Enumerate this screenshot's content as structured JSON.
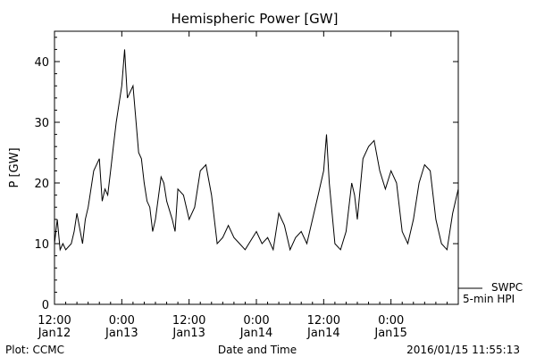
{
  "chart_data": {
    "type": "line",
    "title": "Hemispheric Power [GW]",
    "xlabel": "Date and Time",
    "ylabel": "P [GW]",
    "ylim": [
      0,
      45
    ],
    "yticks": [
      0,
      10,
      20,
      30,
      40
    ],
    "xlim": [
      "2016-01-12 12:00",
      "2016-01-15 12:00"
    ],
    "xticks": [
      {
        "time": "2016-01-12 12:00",
        "line1": "12:00",
        "line2": "Jan12"
      },
      {
        "time": "2016-01-13 00:00",
        "line1": "0:00",
        "line2": "Jan13"
      },
      {
        "time": "2016-01-13 12:00",
        "line1": "12:00",
        "line2": "Jan13"
      },
      {
        "time": "2016-01-14 00:00",
        "line1": "0:00",
        "line2": "Jan14"
      },
      {
        "time": "2016-01-14 12:00",
        "line1": "12:00",
        "line2": "Jan14"
      },
      {
        "time": "2016-01-15 00:00",
        "line1": "0:00",
        "line2": "Jan15"
      }
    ],
    "grid": false,
    "legend": {
      "position": "right-bottom",
      "entries": [
        "SWPC",
        "5-min HPI"
      ]
    },
    "series": [
      {
        "name": "SWPC 5-min HPI",
        "color": "#000000",
        "x": [
          "2016-01-12 12:00",
          "2016-01-12 12:30",
          "2016-01-12 13:00",
          "2016-01-12 13:30",
          "2016-01-12 14:00",
          "2016-01-12 15:00",
          "2016-01-12 15:30",
          "2016-01-12 16:00",
          "2016-01-12 17:00",
          "2016-01-12 17:30",
          "2016-01-12 18:00",
          "2016-01-12 19:00",
          "2016-01-12 20:00",
          "2016-01-12 20:30",
          "2016-01-12 21:00",
          "2016-01-12 21:30",
          "2016-01-12 22:00",
          "2016-01-12 22:30",
          "2016-01-12 23:00",
          "2016-01-13 00:00",
          "2016-01-13 00:30",
          "2016-01-13 01:00",
          "2016-01-13 02:00",
          "2016-01-13 03:00",
          "2016-01-13 03:30",
          "2016-01-13 04:00",
          "2016-01-13 04:30",
          "2016-01-13 05:00",
          "2016-01-13 05:30",
          "2016-01-13 06:00",
          "2016-01-13 07:00",
          "2016-01-13 07:30",
          "2016-01-13 08:00",
          "2016-01-13 09:00",
          "2016-01-13 09:30",
          "2016-01-13 10:00",
          "2016-01-13 11:00",
          "2016-01-13 12:00",
          "2016-01-13 13:00",
          "2016-01-13 14:00",
          "2016-01-13 15:00",
          "2016-01-13 16:00",
          "2016-01-13 17:00",
          "2016-01-13 18:00",
          "2016-01-13 19:00",
          "2016-01-13 20:00",
          "2016-01-13 21:00",
          "2016-01-13 22:00",
          "2016-01-14 00:00",
          "2016-01-14 01:00",
          "2016-01-14 02:00",
          "2016-01-14 03:00",
          "2016-01-14 04:00",
          "2016-01-14 05:00",
          "2016-01-14 06:00",
          "2016-01-14 07:00",
          "2016-01-14 08:00",
          "2016-01-14 09:00",
          "2016-01-14 11:00",
          "2016-01-14 12:00",
          "2016-01-14 12:30",
          "2016-01-14 13:00",
          "2016-01-14 14:00",
          "2016-01-14 15:00",
          "2016-01-14 16:00",
          "2016-01-14 17:00",
          "2016-01-14 17:30",
          "2016-01-14 18:00",
          "2016-01-14 19:00",
          "2016-01-14 20:00",
          "2016-01-14 21:00",
          "2016-01-14 22:00",
          "2016-01-14 23:00",
          "2016-01-15 00:00",
          "2016-01-15 01:00",
          "2016-01-15 02:00",
          "2016-01-15 03:00",
          "2016-01-15 04:00",
          "2016-01-15 05:00",
          "2016-01-15 06:00",
          "2016-01-15 07:00",
          "2016-01-15 08:00",
          "2016-01-15 09:00",
          "2016-01-15 10:00",
          "2016-01-15 11:00",
          "2016-01-15 12:00"
        ],
        "y": [
          10,
          14,
          9,
          10,
          9,
          10,
          12,
          15,
          10,
          14,
          16,
          22,
          24,
          17,
          19,
          18,
          22,
          26,
          30,
          36,
          42,
          34,
          36,
          25,
          24,
          20,
          17,
          16,
          12,
          14,
          21,
          20,
          17,
          14,
          12,
          19,
          18,
          14,
          16,
          22,
          23,
          18,
          10,
          11,
          13,
          11,
          10,
          9,
          12,
          10,
          11,
          9,
          15,
          13,
          9,
          11,
          12,
          10,
          18,
          22,
          28,
          20,
          10,
          9,
          12,
          20,
          18,
          14,
          24,
          26,
          27,
          22,
          19,
          22,
          20,
          12,
          10,
          14,
          20,
          23,
          22,
          14,
          10,
          9,
          15,
          19
        ]
      }
    ],
    "annotations": {
      "left": "Plot: CCMC",
      "right": "2016/01/15 11:55:13"
    }
  }
}
